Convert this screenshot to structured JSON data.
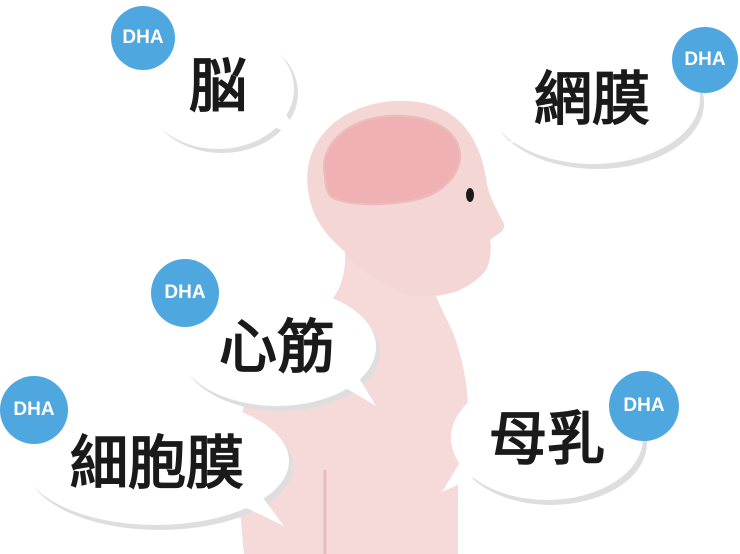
{
  "badge_text": "DHA",
  "bubbles": {
    "brain": "脳",
    "retina": "網膜",
    "heart": "心筋",
    "cell_membrane": "細胞膜",
    "breast_milk": "母乳"
  },
  "colors": {
    "badge": "#4fa7df",
    "body": "#f6dada",
    "head": "#f4d6d4",
    "brain_outline": "#ebbcbc",
    "brain_fill": "#efb1b4",
    "eye": "#1a1a1a",
    "bubble_fill": "#ffffff",
    "bubble_shadow": "#dedede"
  }
}
